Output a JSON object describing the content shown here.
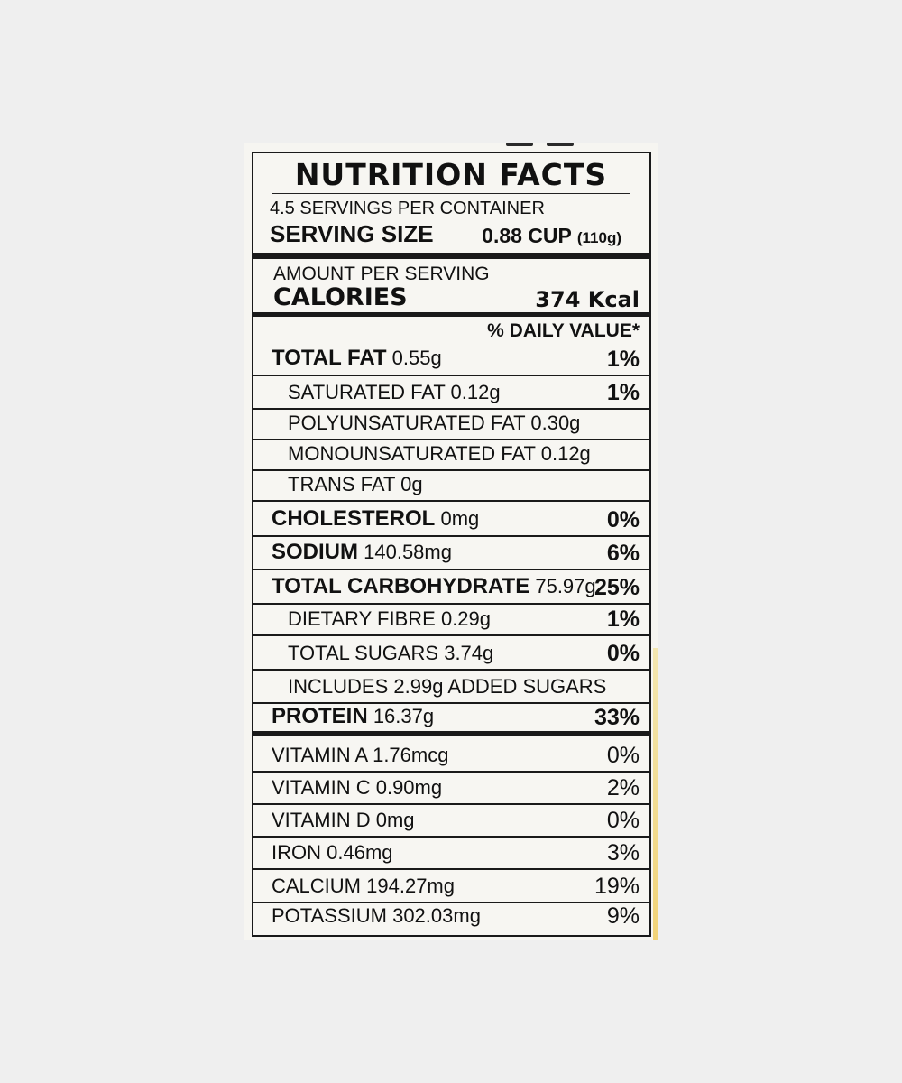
{
  "label": {
    "title": "NUTRITION FACTS",
    "servings_per_container": "4.5 SERVINGS PER CONTAINER",
    "serving_size_label": "SERVING SIZE",
    "serving_size_value": "0.88 CUP",
    "serving_size_grams": "(110g)",
    "amount_per_serving": "AMOUNT PER SERVING",
    "calories_label": "CALORIES",
    "calories_value": "374 Kcal",
    "daily_value_header": "% DAILY VALUE*",
    "nutrients": [
      {
        "name": "TOTAL FAT",
        "amount": "0.55g",
        "pct": "1%"
      },
      {
        "name": "SATURATED FAT",
        "amount": "0.12g",
        "pct": "1%"
      },
      {
        "name": "POLYUNSATURATED FAT",
        "amount": "0.30g",
        "pct": ""
      },
      {
        "name": "MONOUNSATURATED FAT",
        "amount": "0.12g",
        "pct": ""
      },
      {
        "name": "TRANS FAT",
        "amount": "0g",
        "pct": ""
      },
      {
        "name": "CHOLESTEROL",
        "amount": "0mg",
        "pct": "0%"
      },
      {
        "name": "SODIUM",
        "amount": "140.58mg",
        "pct": "6%"
      },
      {
        "name": "TOTAL CARBOHYDRATE",
        "amount": "75.97g",
        "pct": "25%"
      },
      {
        "name": "DIETARY FIBRE",
        "amount": "0.29g",
        "pct": "1%"
      },
      {
        "name": "TOTAL SUGARS",
        "amount": "3.74g",
        "pct": "0%"
      },
      {
        "name": "INCLUDES",
        "amount": "2.99g ADDED SUGARS",
        "pct": ""
      },
      {
        "name": "PROTEIN",
        "amount": "16.37g",
        "pct": "33%"
      }
    ],
    "vitamins": [
      {
        "name": "VITAMIN A",
        "amount": "1.76mcg",
        "pct": "0%"
      },
      {
        "name": "VITAMIN C",
        "amount": "0.90mg",
        "pct": "2%"
      },
      {
        "name": "VITAMIN D",
        "amount": "0mg",
        "pct": "0%"
      },
      {
        "name": "IRON",
        "amount": "0.46mg",
        "pct": "3%"
      },
      {
        "name": "CALCIUM",
        "amount": "194.27mg",
        "pct": "19%"
      },
      {
        "name": "POTASSIUM",
        "amount": "302.03mg",
        "pct": "9%"
      }
    ]
  }
}
